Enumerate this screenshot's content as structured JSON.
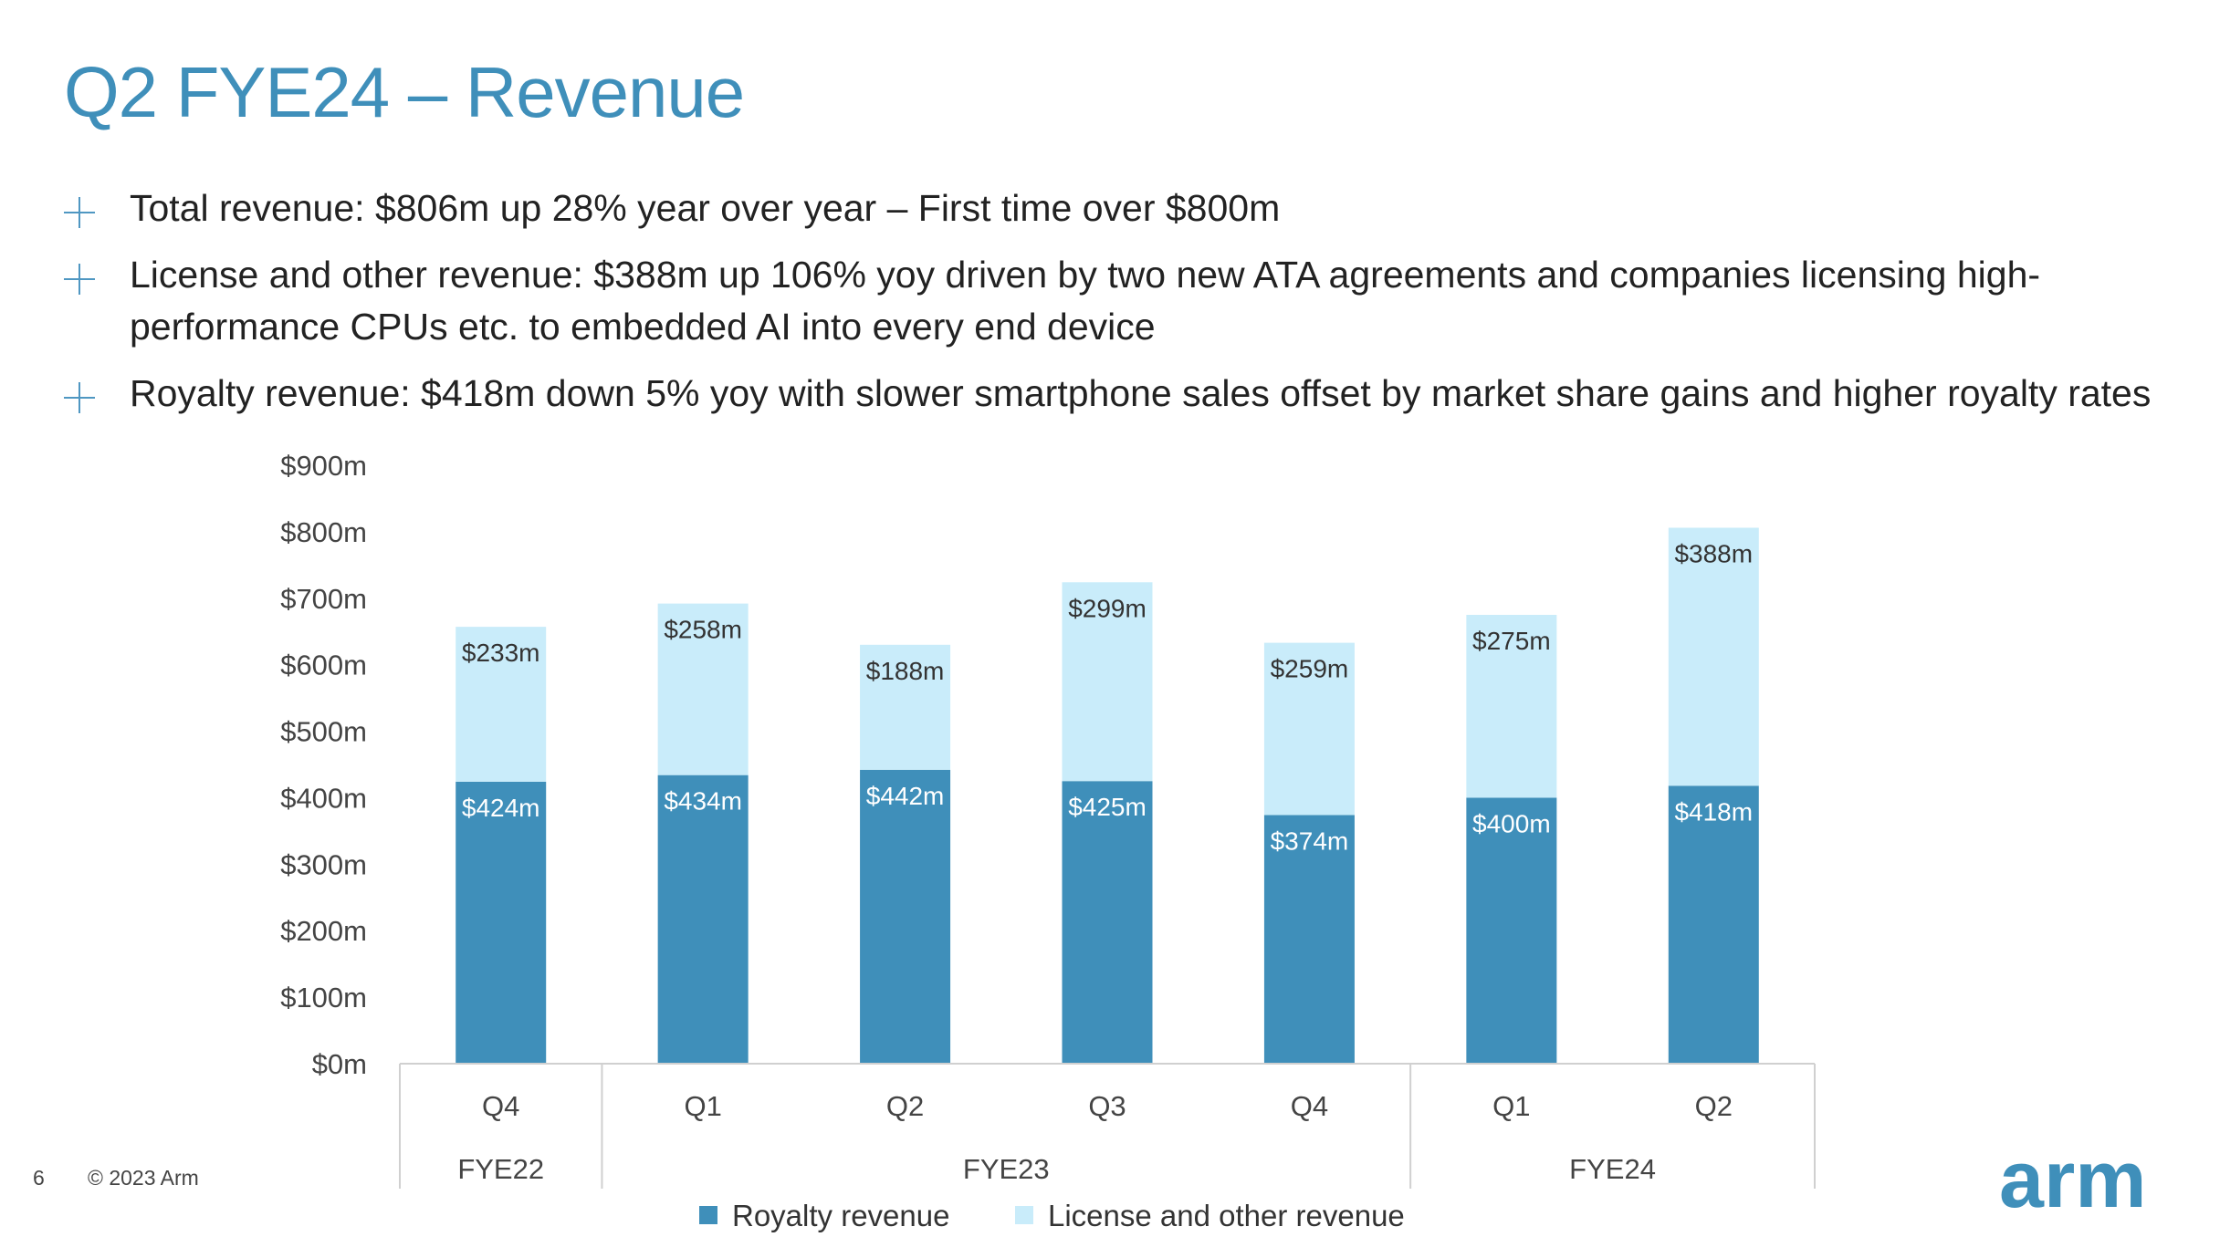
{
  "slide": {
    "title": "Q2 FYE24 – Revenue",
    "bullets": [
      {
        "text": "Total revenue: $806m up 28% year over year – First time over $800m"
      },
      {
        "text": "License and other revenue: $388m up 106% yoy driven by two new ATA agreements and companies licensing high-performance CPUs etc. to embedded AI into every end device"
      },
      {
        "text": "Royalty revenue: $418m down 5% yoy with slower smartphone sales offset by market share gains and higher royalty rates"
      }
    ],
    "footer": {
      "page_number": "6",
      "copyright": "© 2023 Arm"
    },
    "logo_text": "arm"
  },
  "chart_data": {
    "type": "bar",
    "stacked": true,
    "categories": [
      "Q4",
      "Q1",
      "Q2",
      "Q3",
      "Q4",
      "Q1",
      "Q2"
    ],
    "groups": [
      {
        "label": "FYE22",
        "start": 0,
        "count": 1
      },
      {
        "label": "FYE23",
        "start": 1,
        "count": 4
      },
      {
        "label": "FYE24",
        "start": 5,
        "count": 2
      }
    ],
    "series": [
      {
        "name": "Royalty revenue",
        "color": "#3f8fba",
        "values": [
          424,
          434,
          442,
          425,
          374,
          400,
          418
        ],
        "labels": [
          "$424m",
          "$434m",
          "$442m",
          "$425m",
          "$374m",
          "$400m",
          "$418m"
        ]
      },
      {
        "name": "License and other revenue",
        "color": "#c9ecfa",
        "values": [
          233,
          258,
          188,
          299,
          259,
          275,
          388
        ],
        "labels": [
          "$233m",
          "$258m",
          "$188m",
          "$299m",
          "$259m",
          "$275m",
          "$388m"
        ]
      }
    ],
    "yticks": [
      "$0m",
      "$100m",
      "$200m",
      "$300m",
      "$400m",
      "$500m",
      "$600m",
      "$700m",
      "$800m",
      "$900m"
    ],
    "ylim": [
      0,
      900
    ],
    "legend_position": "bottom",
    "grid": false
  }
}
